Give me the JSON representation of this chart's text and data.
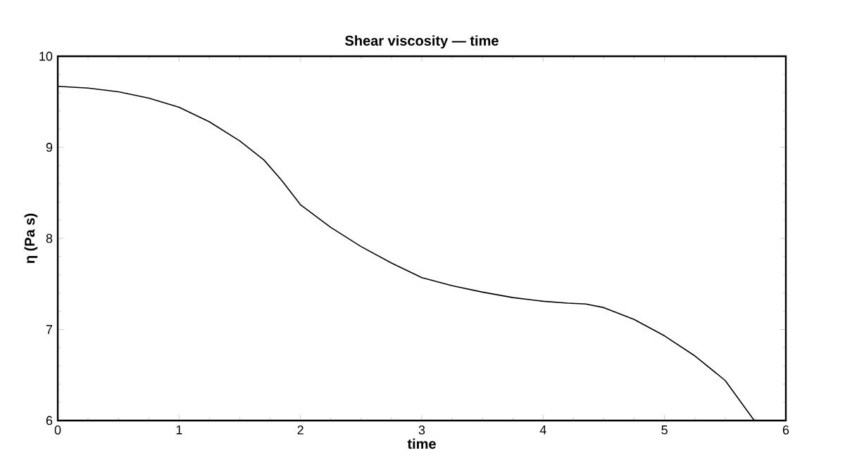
{
  "chart_data": {
    "type": "line",
    "title": "Shear viscosity — time",
    "xlabel": "time",
    "ylabel": "η (Pa s)",
    "x": [
      0,
      0.25,
      0.5,
      0.75,
      1,
      1.25,
      1.5,
      1.7,
      1.85,
      2,
      2.25,
      2.5,
      2.75,
      3,
      3.25,
      3.5,
      3.75,
      4,
      4.2,
      4.35,
      4.5,
      4.75,
      5,
      5.25,
      5.5,
      5.74
    ],
    "series": [
      {
        "color": "#000000",
        "values": [
          9.67,
          9.65,
          9.61,
          9.54,
          9.44,
          9.28,
          9.07,
          8.86,
          8.63,
          8.37,
          8.12,
          7.91,
          7.73,
          7.57,
          7.48,
          7.41,
          7.35,
          7.31,
          7.29,
          7.28,
          7.24,
          7.11,
          6.93,
          6.71,
          6.44,
          6.0
        ]
      }
    ],
    "xlim": [
      0,
      6
    ],
    "ylim": [
      6,
      10
    ],
    "xticks": [
      0,
      1,
      2,
      3,
      4,
      5,
      6
    ],
    "yticks": [
      6,
      7,
      8,
      9,
      10
    ],
    "grid": false,
    "marker": "none",
    "line_style": "solid"
  }
}
